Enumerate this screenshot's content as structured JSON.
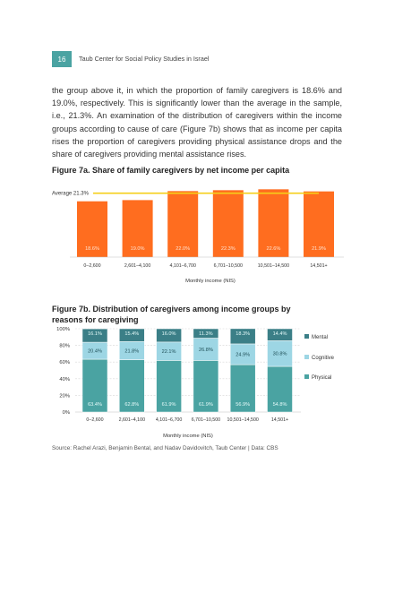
{
  "header": {
    "page_number": "16",
    "running_title": "Taub Center for Social Policy Studies in Israel"
  },
  "body": {
    "paragraph": "the group above it, in which the proportion of family caregivers is 18.6% and 19.0%, respectively. This is significantly lower than the average in the sample, i.e., 21.3%. An examination of the distribution of caregivers within the income groups according to cause of care (Figure 7b) shows that as income per capita rises the proportion of caregivers providing physical assistance drops and the share of caregivers providing mental assistance rises."
  },
  "colors": {
    "orange": "#ff6d1f",
    "average_line": "#f5cf1a",
    "physical": "#4aa3a2",
    "cognitive": "#9dd6e4",
    "mental": "#3b7f87",
    "badge": "#4aa3a2"
  },
  "chart_data": [
    {
      "id": "fig7a",
      "type": "bar",
      "title": "Figure 7a. Share of family caregivers by net income per capita",
      "xlabel": "Monthly income (NIS)",
      "ylabel": "",
      "categories": [
        "0–2,600",
        "2,601–4,100",
        "4,101–6,700",
        "6,701–10,500",
        "10,501–14,500",
        "14,501+"
      ],
      "values": [
        18.6,
        19.0,
        22.0,
        22.3,
        22.6,
        21.9
      ],
      "value_labels": [
        "18.6%",
        "19.0%",
        "22.0%",
        "22.3%",
        "22.6%",
        "21.9%"
      ],
      "reference_line": {
        "value": 21.3,
        "label": "Average 21.3%"
      },
      "ylim": [
        0,
        23
      ],
      "grid": false,
      "legend": "none"
    },
    {
      "id": "fig7b",
      "type": "bar",
      "stacked": true,
      "title": "Figure 7b. Distribution of caregivers among income groups by reasons for caregiving",
      "xlabel": "Monthly income (NIS)",
      "ylabel": "",
      "categories": [
        "0–2,600",
        "2,601–4,100",
        "4,101–6,700",
        "6,701–10,500",
        "10,501–14,500",
        "14,501+"
      ],
      "y_ticks": [
        "0%",
        "20%",
        "40%",
        "60%",
        "80%",
        "100%"
      ],
      "ylim": [
        0,
        100
      ],
      "grid": true,
      "legend": "right",
      "series": [
        {
          "name": "Physical",
          "values": [
            63.4,
            62.8,
            61.9,
            61.9,
            56.9,
            54.8
          ],
          "labels": [
            "63.4%",
            "62.8%",
            "61.9%",
            "61.9%",
            "56.9%",
            "54.8%"
          ]
        },
        {
          "name": "Cognitive",
          "values": [
            20.4,
            21.8,
            22.1,
            26.8,
            24.9,
            30.8
          ],
          "labels": [
            "20.4%",
            "21.8%",
            "22.1%",
            "26.8%",
            "24.9%",
            "30.8%"
          ]
        },
        {
          "name": "Mental",
          "values": [
            16.1,
            15.4,
            16.0,
            11.3,
            18.3,
            14.4
          ],
          "labels": [
            "16.1%",
            "15.4%",
            "16.0%",
            "11.3%",
            "18.3%",
            "14.4%"
          ]
        }
      ]
    }
  ],
  "source": "Source: Rachel Arazi, Benjamin Bental, and Nadav Davidovitch, Taub Center | Data: CBS"
}
